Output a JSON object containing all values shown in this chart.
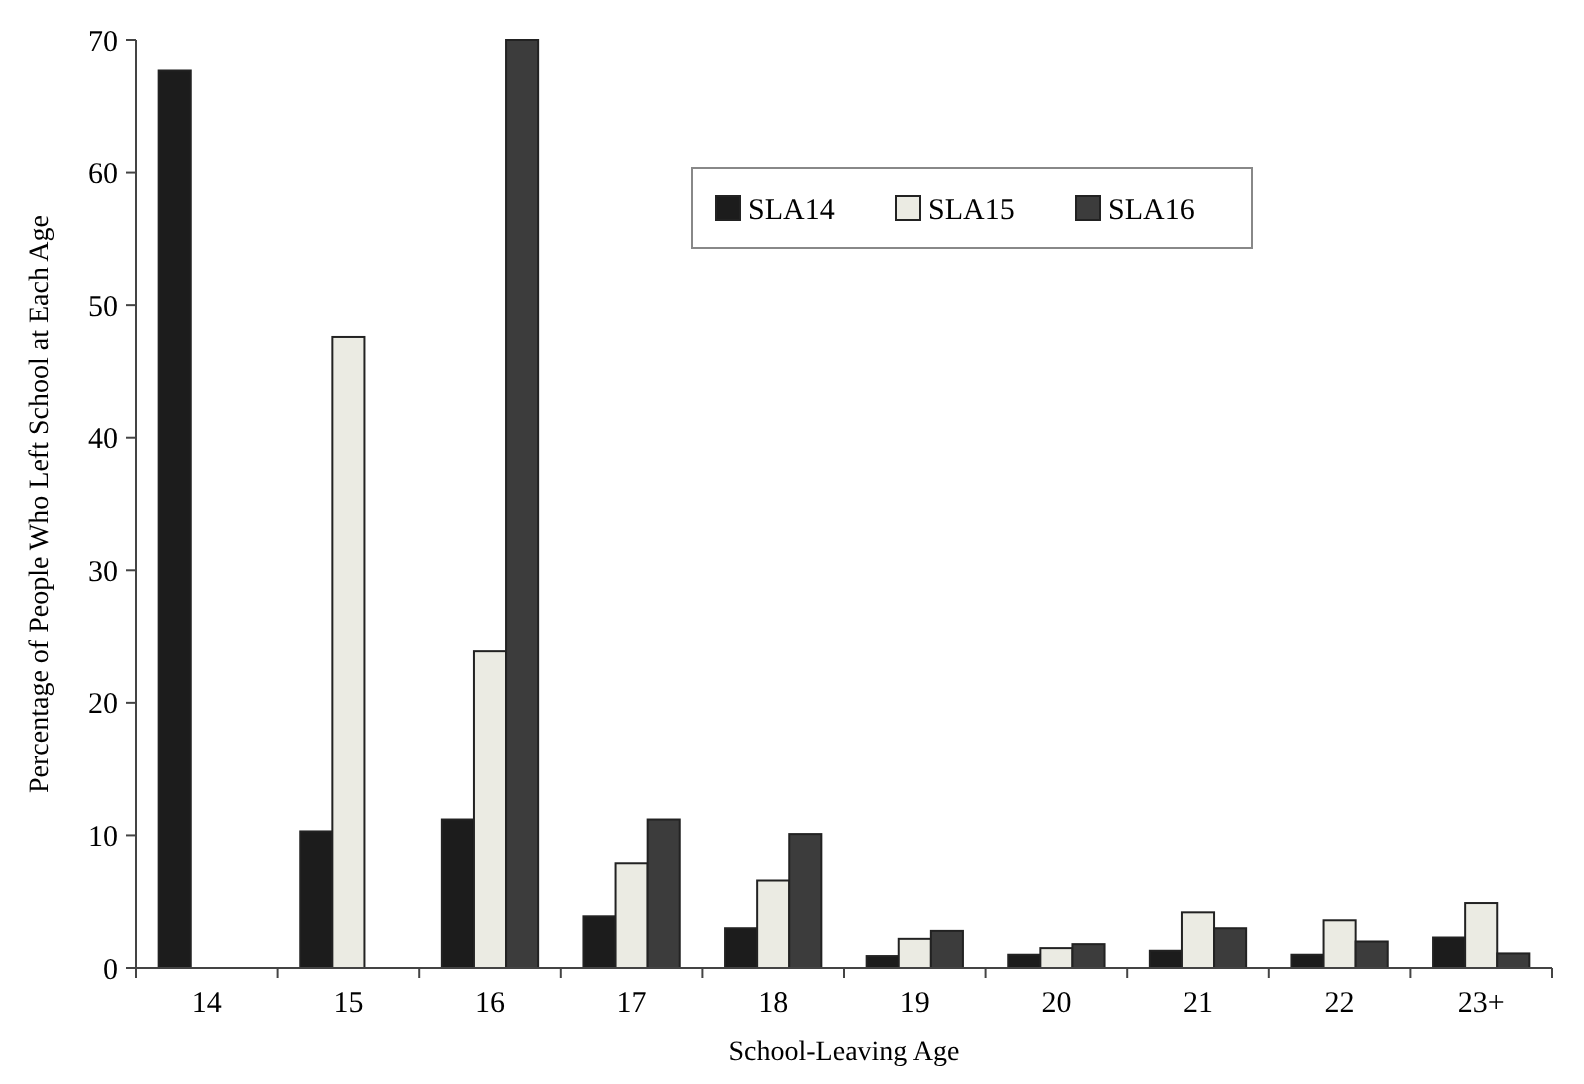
{
  "chart_data": {
    "type": "bar",
    "xlabel": "School-Leaving Age",
    "ylabel": "Percentage of People Who Left School at Each Age",
    "categories": [
      "14",
      "15",
      "16",
      "17",
      "18",
      "19",
      "20",
      "21",
      "22",
      "23+"
    ],
    "series": [
      {
        "name": "SLA14",
        "color": "#1c1c1c",
        "values": [
          67.7,
          10.3,
          11.2,
          3.9,
          3.0,
          0.9,
          1.0,
          1.3,
          1.0,
          2.3
        ]
      },
      {
        "name": "SLA15",
        "color": "#ebebe3",
        "values": [
          0,
          47.6,
          23.9,
          7.9,
          6.6,
          2.2,
          1.5,
          4.2,
          3.6,
          4.9
        ]
      },
      {
        "name": "SLA16",
        "color": "#3c3c3c",
        "values": [
          0,
          0,
          70,
          11.2,
          10.1,
          2.8,
          1.8,
          3.0,
          2.0,
          1.1
        ]
      }
    ],
    "ylim": [
      0,
      70
    ],
    "yticks": [
      0,
      10,
      20,
      30,
      40,
      50,
      60,
      70
    ],
    "grid": false,
    "legend": "top right"
  }
}
